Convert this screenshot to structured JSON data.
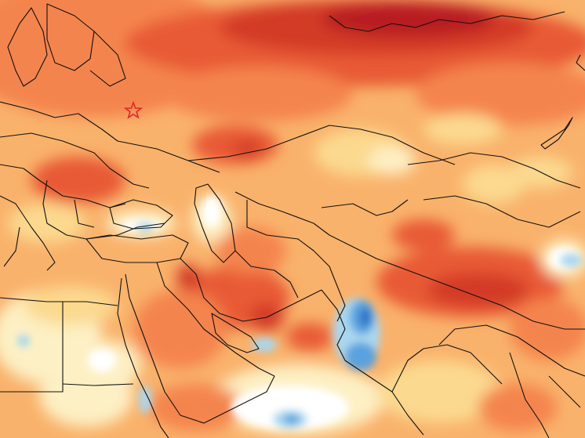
{
  "map": {
    "region": "",
    "palette": {
      "white": "#ffffff",
      "pale": "#fdf0c4",
      "cream": "#fbd98f",
      "light_orange": "#f9b26b",
      "orange": "#f4844d",
      "red_orange": "#e85a36",
      "red": "#d33a26",
      "dark_red": "#b81e20",
      "light_blue": "#a9d7ef",
      "blue": "#5aa2de",
      "dark_blue": "#2f6fc6",
      "border": "#111111",
      "marker": "#e0272b"
    },
    "marker": {
      "icon": "star-icon",
      "outline_color": "#e0272b"
    }
  }
}
